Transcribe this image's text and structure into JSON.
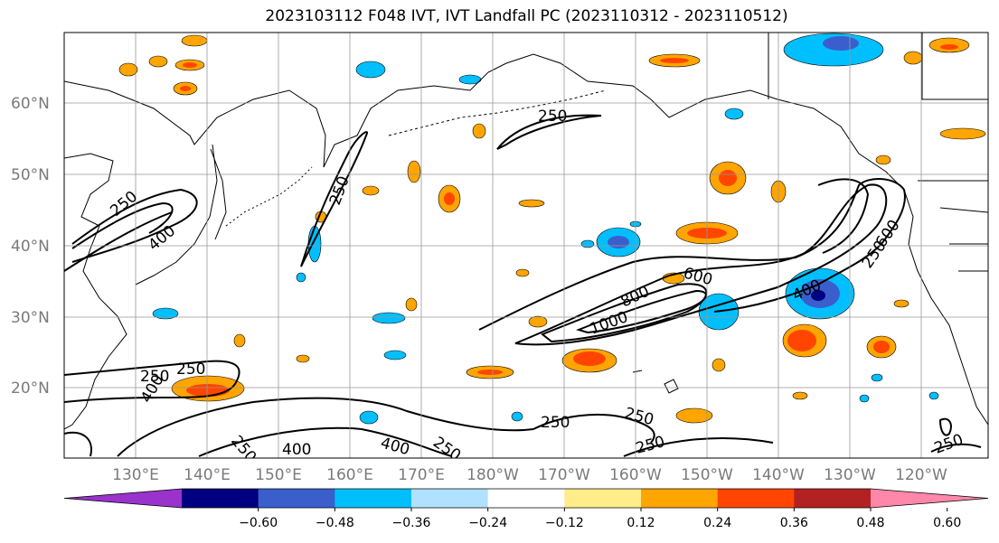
{
  "title": "2023103112 F048 IVT, IVT Landfall PC (2023110312 - 2023110512)",
  "lat_labels": [
    "60°N",
    "50°N",
    "40°N",
    "30°N",
    "20°N"
  ],
  "lon_labels": [
    "130°E",
    "140°E",
    "150°E",
    "160°E",
    "170°E",
    "180°W",
    "170°W",
    "160°W",
    "150°W",
    "140°W",
    "130°W",
    "120°W"
  ],
  "colorbar": {
    "colors": [
      "#9933cc",
      "#000080",
      "#3a5fcd",
      "#00bfff",
      "#b0e2ff",
      "#ffffff",
      "#ffec8b",
      "#ffa500",
      "#ff4500",
      "#b22222",
      "#ff88aa"
    ],
    "tick_labels": [
      "−0.60",
      "−0.48",
      "−0.36",
      "−0.24",
      "−0.12",
      "0.12",
      "0.24",
      "0.36",
      "0.48",
      "0.60"
    ]
  },
  "contour_labels": [
    "250",
    "250",
    "250",
    "400",
    "250",
    "400",
    "250",
    "250",
    "400",
    "800",
    "600",
    "1000",
    "400",
    "250",
    "600",
    "250",
    "250",
    "250",
    "400",
    "250",
    "250"
  ]
}
